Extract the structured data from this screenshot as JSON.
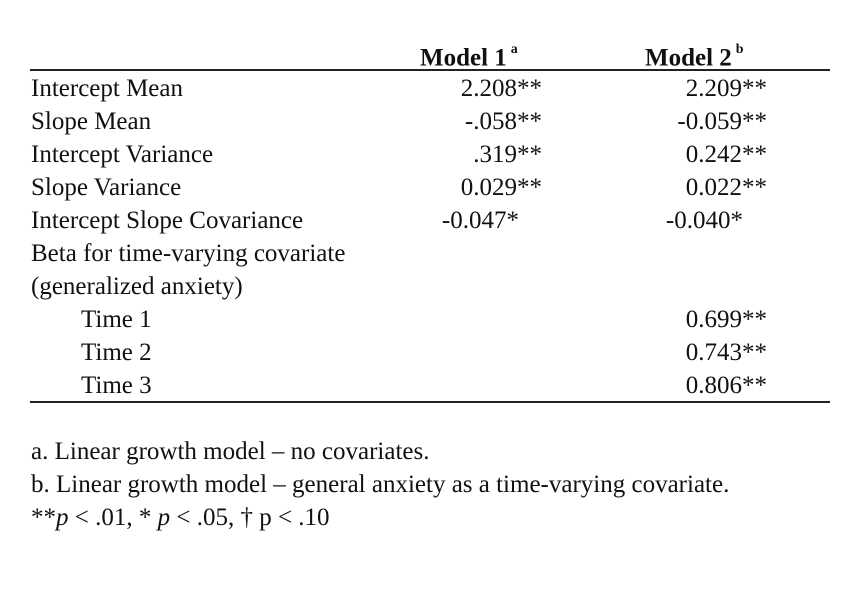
{
  "table": {
    "columns": [
      {
        "label": "Model 1",
        "superscript": "a"
      },
      {
        "label": "Model 2",
        "superscript": "b"
      }
    ],
    "rows": [
      {
        "label": "Intercept Mean",
        "model1": "2.208**",
        "model2": "2.209**"
      },
      {
        "label": "Slope Mean",
        "model1": "-.058**",
        "model2": "-0.059**"
      },
      {
        "label": "Intercept Variance",
        "model1": ".319**",
        "model2": "0.242**"
      },
      {
        "label": "Slope Variance",
        "model1": "0.029**",
        "model2": "0.022**"
      },
      {
        "label": "Intercept Slope Covariance",
        "model1": "-0.047*",
        "model2": "-0.040*"
      },
      {
        "label": "Beta for time-varying covariate",
        "model1": "",
        "model2": ""
      },
      {
        "label": "(generalized anxiety)",
        "model1": "",
        "model2": ""
      },
      {
        "label": "Time 1",
        "model1": "",
        "model2": "0.699**"
      },
      {
        "label": "Time 2",
        "model1": "",
        "model2": "0.743**"
      },
      {
        "label": "Time 3",
        "model1": "",
        "model2": "0.806**"
      }
    ]
  },
  "notes": {
    "a": "a. Linear growth model – no covariates.",
    "b": "b. Linear growth model – general anxiety as a time-varying covariate.",
    "significance": {
      "stars2": "**",
      "p1": "p",
      "t1": " < .01, * ",
      "p2": "p",
      "t2": " < .05, † p < .10"
    }
  }
}
